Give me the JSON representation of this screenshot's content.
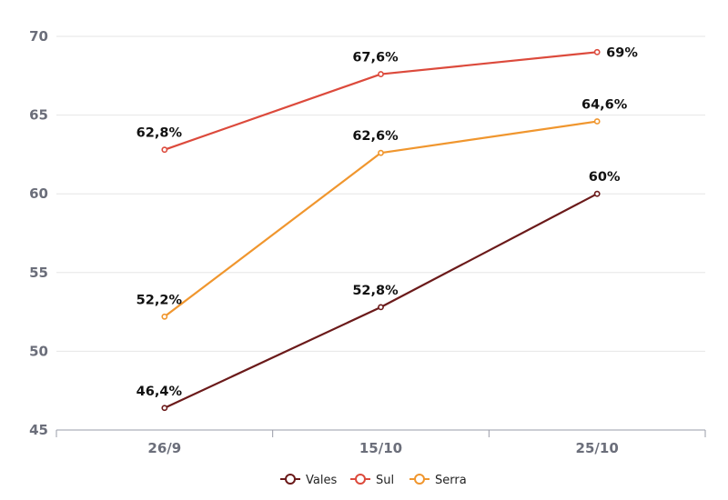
{
  "chart_data": {
    "type": "line",
    "title": "",
    "xlabel": "",
    "ylabel": "",
    "categories": [
      "26/9",
      "15/10",
      "25/10"
    ],
    "ylim": [
      45,
      70
    ],
    "yticks": [
      45,
      50,
      55,
      60,
      65,
      70
    ],
    "grid": true,
    "legend_position": "bottom-center",
    "series": [
      {
        "name": "Vales",
        "color": "#6b1a1a",
        "values": [
          46.4,
          52.8,
          60
        ],
        "labels": [
          "46,4%",
          "52,8%",
          "60%"
        ]
      },
      {
        "name": "Sul",
        "color": "#dc4a3c",
        "values": [
          62.8,
          67.6,
          69
        ],
        "labels": [
          "62,8%",
          "67,6%",
          "69%"
        ]
      },
      {
        "name": "Serra",
        "color": "#f0962e",
        "values": [
          52.2,
          62.6,
          64.6
        ],
        "labels": [
          "52,2%",
          "62,6%",
          "64,6%"
        ]
      }
    ]
  }
}
